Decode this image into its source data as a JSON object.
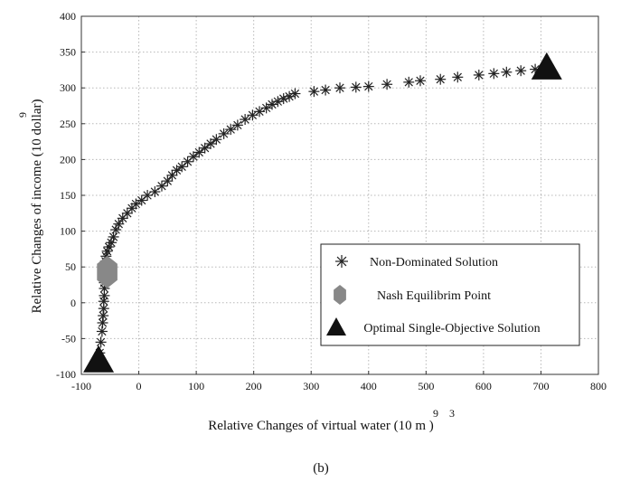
{
  "chart_data": {
    "type": "scatter",
    "xlabel": {
      "text": "Relative Changes of virtual water (10 m )",
      "exp1": "9",
      "exp2": "3"
    },
    "ylabel": {
      "text": "Relative Changes of income (10 dollar)",
      "exp": "9"
    },
    "xlim": [
      -100,
      800
    ],
    "ylim": [
      -100,
      400
    ],
    "xticks": [
      -100,
      0,
      100,
      200,
      300,
      400,
      500,
      600,
      700,
      800
    ],
    "yticks": [
      -100,
      -50,
      0,
      50,
      100,
      150,
      200,
      250,
      300,
      350,
      400
    ],
    "grid": true,
    "grid_style": "dotted",
    "legend_position": "lower-right",
    "series": [
      {
        "name": "Non-Dominated Solution",
        "marker": "asterisk",
        "color": "#222222",
        "x": [
          -68,
          -66,
          -64,
          -63,
          -62,
          -61,
          -61,
          -60,
          -60,
          -60,
          -59,
          -58,
          -58,
          -57,
          -55,
          -52,
          -48,
          -44,
          -40,
          -35,
          -28,
          -20,
          -12,
          -5,
          5,
          15,
          28,
          40,
          50,
          58,
          66,
          75,
          85,
          95,
          105,
          115,
          125,
          135,
          148,
          160,
          172,
          185,
          198,
          210,
          222,
          232,
          242,
          252,
          262,
          272,
          305,
          325,
          350,
          378,
          400,
          432,
          470,
          490,
          525,
          555,
          592,
          618,
          640,
          665,
          690
        ],
        "y": [
          -70,
          -55,
          -40,
          -28,
          -18,
          -8,
          2,
          10,
          20,
          28,
          40,
          50,
          58,
          65,
          72,
          78,
          84,
          92,
          102,
          110,
          118,
          125,
          132,
          138,
          143,
          150,
          155,
          163,
          170,
          178,
          185,
          190,
          197,
          204,
          210,
          216,
          222,
          228,
          236,
          242,
          248,
          256,
          262,
          267,
          272,
          277,
          281,
          285,
          288,
          292,
          295,
          297,
          300,
          301,
          302,
          305,
          308,
          310,
          312,
          315,
          318,
          320,
          322,
          324,
          326
        ]
      },
      {
        "name": "Nash Equilibrim Point",
        "marker": "hexagon",
        "color": "#888888",
        "x": [
          -55
        ],
        "y": [
          43
        ]
      },
      {
        "name": "Optimal Single-Objective Solution",
        "marker": "triangle",
        "color": "#111111",
        "x": [
          -70,
          710
        ],
        "y": [
          -82,
          327
        ]
      }
    ]
  },
  "caption": "(b)"
}
